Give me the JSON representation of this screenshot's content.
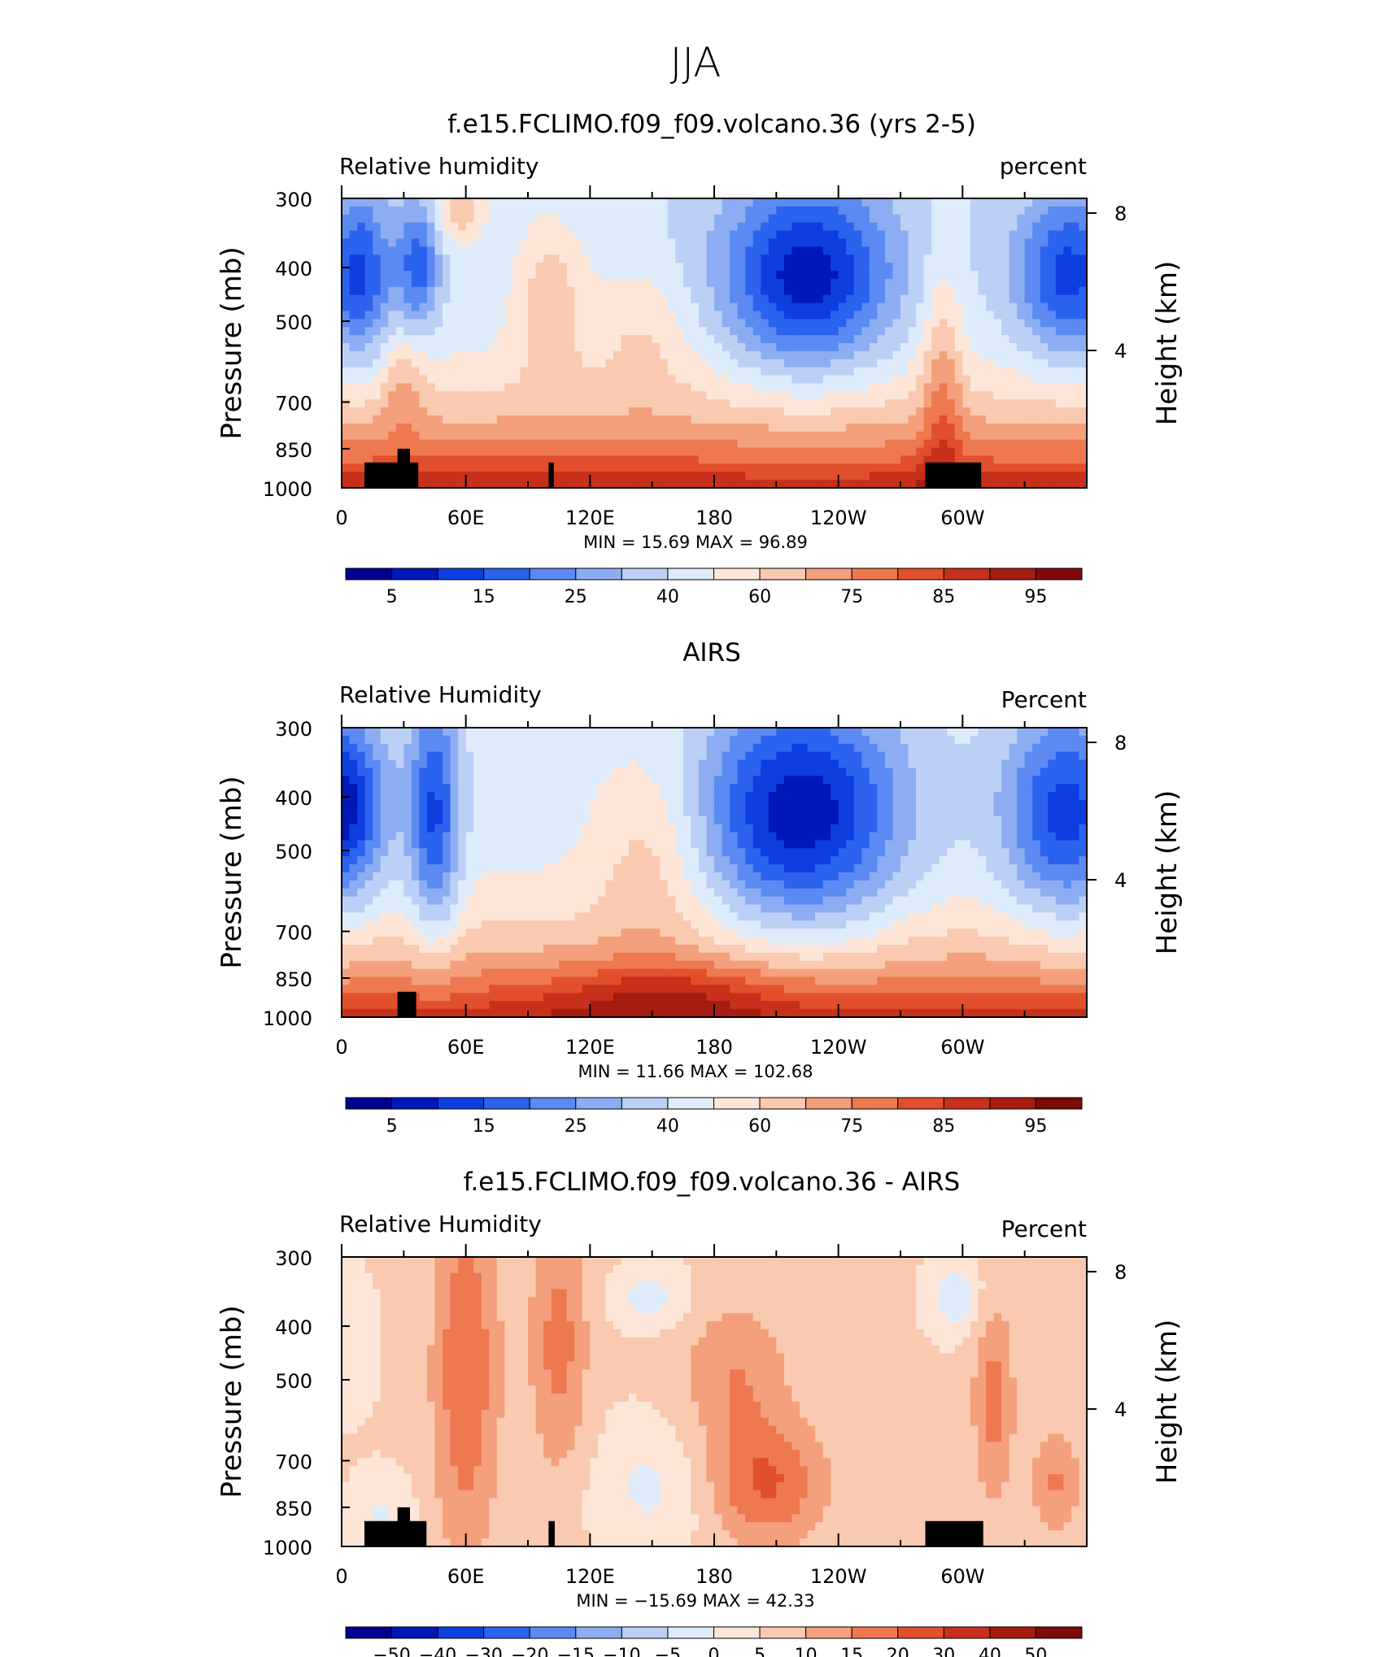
{
  "figure": {
    "title": "JJA"
  },
  "colors": {
    "rh": [
      "#00008f",
      "#0018b8",
      "#0c3ee0",
      "#2b63ef",
      "#5b8af2",
      "#8dadf3",
      "#bcd0f6",
      "#deebfb",
      "#fde6d7",
      "#f9c9b0",
      "#f4a07c",
      "#ee7850",
      "#e14f2c",
      "#c7301a",
      "#a51c10",
      "#7e0a0a"
    ],
    "diff": [
      "#00008f",
      "#0018b8",
      "#0c3ee0",
      "#2b63ef",
      "#5b8af2",
      "#8dadf3",
      "#bcd0f6",
      "#deebfb",
      "#fde6d7",
      "#f9c9b0",
      "#f4a07c",
      "#ee7850",
      "#e14f2c",
      "#c7301a",
      "#a51c10",
      "#7e0a0a"
    ],
    "land": "#000000"
  },
  "panels": [
    {
      "title": "f.e15.FCLIMO.f09_f09.volcano.36 (yrs 2-5)",
      "left_label": "Relative  humidity",
      "right_label": "percent",
      "stats": "MIN =   15.69   MAX =   96.89",
      "colorbar_labels": [
        "5",
        "15",
        "25",
        "40",
        "60",
        "75",
        "85",
        "95"
      ]
    },
    {
      "title": "AIRS",
      "left_label": "Relative  Humidity",
      "right_label": "Percent",
      "stats": "MIN =   11.66   MAX = 102.68",
      "colorbar_labels": [
        "5",
        "15",
        "25",
        "40",
        "60",
        "75",
        "85",
        "95"
      ]
    },
    {
      "title": "f.e15.FCLIMO.f09_f09.volcano.36 - AIRS",
      "left_label": "Relative  Humidity",
      "right_label": "Percent",
      "stats": "MIN =  −15.69   MAX =   42.33",
      "colorbar_labels": [
        "−50",
        "−40",
        "−30",
        "−20",
        "−15",
        "−10",
        "−5",
        "0",
        "5",
        "10",
        "15",
        "20",
        "30",
        "40",
        "50"
      ]
    }
  ],
  "axes": {
    "y_label": "Pressure  (mb)",
    "y_ticks": [
      "300",
      "400",
      "500",
      "700",
      "850",
      "1000"
    ],
    "y2_label": "Height  (km)",
    "y2_ticks": [
      "8",
      "4"
    ],
    "x_ticks": [
      "0",
      "60E",
      "120E",
      "180",
      "120W",
      "60W"
    ]
  },
  "chart_data": [
    {
      "type": "heatmap",
      "title": "f.e15.FCLIMO.f09_f09.volcano.36 (yrs 2-5)",
      "variable": "Relative humidity",
      "units": "percent",
      "x": [
        "0",
        "60E",
        "120E",
        "180",
        "120W",
        "60W"
      ],
      "y": [
        300,
        400,
        500,
        700,
        850,
        1000
      ],
      "levels": [
        5,
        10,
        15,
        20,
        25,
        30,
        40,
        50,
        60,
        70,
        75,
        80,
        85,
        90,
        95
      ],
      "min": 15.69,
      "max": 96.89
    },
    {
      "type": "heatmap",
      "title": "AIRS",
      "variable": "Relative Humidity",
      "units": "Percent",
      "x": [
        "0",
        "60E",
        "120E",
        "180",
        "120W",
        "60W"
      ],
      "y": [
        300,
        400,
        500,
        700,
        850,
        1000
      ],
      "levels": [
        5,
        10,
        15,
        20,
        25,
        30,
        40,
        50,
        60,
        70,
        75,
        80,
        85,
        90,
        95
      ],
      "min": 11.66,
      "max": 102.68
    },
    {
      "type": "heatmap",
      "title": "f.e15.FCLIMO.f09_f09.volcano.36 - AIRS",
      "variable": "Relative Humidity",
      "units": "Percent",
      "x": [
        "0",
        "60E",
        "120E",
        "180",
        "120W",
        "60W"
      ],
      "y": [
        300,
        400,
        500,
        700,
        850,
        1000
      ],
      "levels": [
        -50,
        -40,
        -30,
        -20,
        -15,
        -10,
        -5,
        0,
        5,
        10,
        15,
        20,
        30,
        40,
        50
      ],
      "min": -15.69,
      "max": 42.33
    }
  ]
}
